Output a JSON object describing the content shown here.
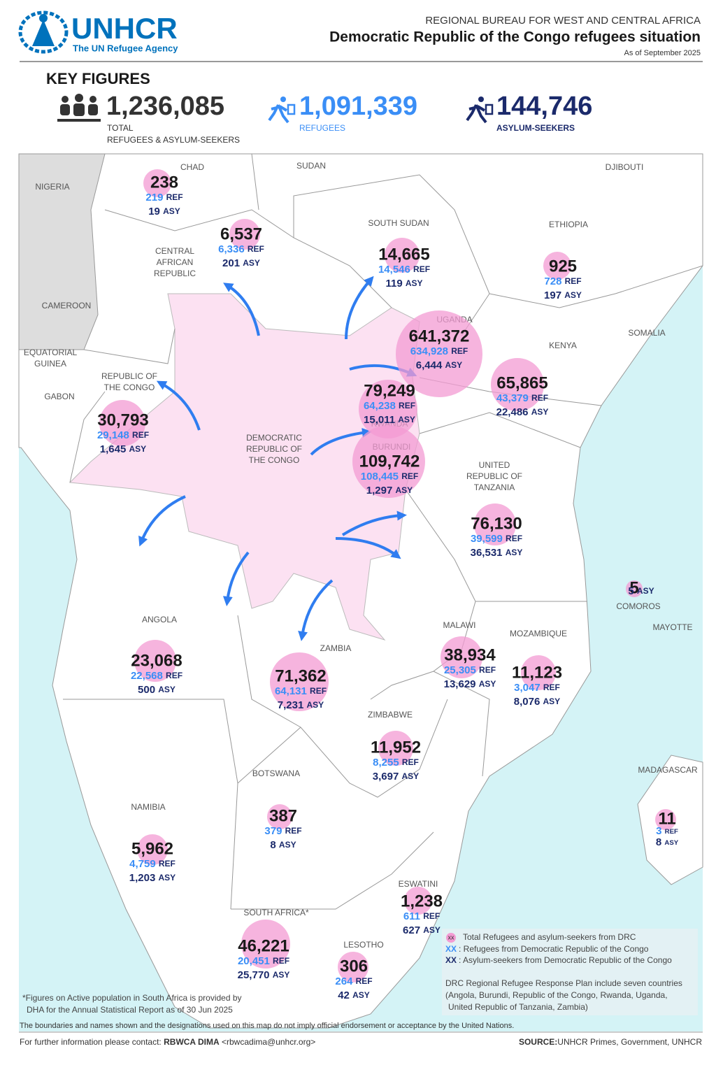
{
  "header": {
    "org": "UNHCR",
    "org_sub": "The UN Refugee Agency",
    "bureau": "REGIONAL BUREAU FOR WEST AND CENTRAL AFRICA",
    "title": "Democratic Republic of the Congo refugees situation",
    "date": "As of September 2025"
  },
  "key_figures": {
    "heading": "KEY FIGURES",
    "items": [
      {
        "value": "1,236,085",
        "label": [
          "TOTAL",
          "REFUGEES & ASYLUM-SEEKERS"
        ]
      },
      {
        "value": "1,091,339",
        "label": [
          "REFUGEES"
        ]
      },
      {
        "value": "144,746",
        "label": [
          "ASYLUM-SEEKERS"
        ]
      }
    ]
  },
  "units": {
    "ref": "REF",
    "asy": "ASY"
  },
  "countries": [
    [
      "NIGERIA"
    ],
    [
      "CHAD"
    ],
    [
      "SUDAN"
    ],
    [
      "DJIBOUTI"
    ],
    [
      "SOUTH SUDAN"
    ],
    [
      "ETHIOPIA"
    ],
    [
      "CENTRAL",
      "AFRICAN",
      "REPUBLIC"
    ],
    [
      "CAMEROON"
    ],
    [
      "SOMALIA"
    ],
    [
      "KENYA"
    ],
    [
      "UGANDA"
    ],
    [
      "EQUATORIAL",
      "GUINEA"
    ],
    [
      "REPUBLIC OF",
      "THE CONGO"
    ],
    [
      "GABON"
    ],
    [
      "RWANDA"
    ],
    [
      "BURUNDI"
    ],
    [
      "DEMOCRATIC",
      "REPUBLIC OF",
      "THE CONGO"
    ],
    [
      "UNITED",
      "REPUBLIC OF",
      "TANZANIA"
    ],
    [
      "COMOROS"
    ],
    [
      "MAYOTTE"
    ],
    [
      "ANGOLA"
    ],
    [
      "MALAWI"
    ],
    [
      "MOZAMBIQUE"
    ],
    [
      "ZAMBIA"
    ],
    [
      "ZIMBABWE"
    ],
    [
      "MADAGASCAR"
    ],
    [
      "BOTSWANA"
    ],
    [
      "NAMIBIA"
    ],
    [
      "ESWATINI"
    ],
    [
      "SOUTH AFRICA*"
    ],
    [
      "LESOTHO"
    ]
  ],
  "figures": [
    {
      "total": "238",
      "ref": "219",
      "asy": "19"
    },
    {
      "total": "6,537",
      "ref": "6,336",
      "asy": "201"
    },
    {
      "total": "14,665",
      "ref": "14,546",
      "asy": "119"
    },
    {
      "total": "925",
      "ref": "728",
      "asy": "197"
    },
    {
      "total": "641,372",
      "ref": "634,928",
      "asy": "6,444"
    },
    {
      "total": "65,865",
      "ref": "43,379",
      "asy": "22,486"
    },
    {
      "total": "79,249",
      "ref": "64,238",
      "asy": "15,011"
    },
    {
      "total": "109,742",
      "ref": "108,445",
      "asy": "1,297"
    },
    {
      "total": "30,793",
      "ref": "29,148",
      "asy": "1,645"
    },
    {
      "total": "76,130",
      "ref": "39,599",
      "asy": "36,531"
    },
    {
      "total": "5",
      "asy": "5"
    },
    {
      "total": "23,068",
      "ref": "22,568",
      "asy": "500"
    },
    {
      "total": "71,362",
      "ref": "64,131",
      "asy": "7,231"
    },
    {
      "total": "38,934",
      "ref": "25,305",
      "asy": "13,629"
    },
    {
      "total": "11,123",
      "ref": "3,047",
      "asy": "8,076"
    },
    {
      "total": "11,952",
      "ref": "8,255",
      "asy": "3,697"
    },
    {
      "total": "387",
      "ref": "379",
      "asy": "8"
    },
    {
      "total": "5,962",
      "ref": "4,759",
      "asy": "1,203"
    },
    {
      "total": "11",
      "ref": "3",
      "asy": "8"
    },
    {
      "total": "1,238",
      "ref": "611",
      "asy": "627"
    },
    {
      "total": "46,221",
      "ref": "20,451",
      "asy": "25,770"
    },
    {
      "total": "306",
      "ref": "264",
      "asy": "42"
    }
  ],
  "legend": {
    "items": [
      {
        "sample": "xx",
        "text": "Total Refugees and asylum-seekers from DRC"
      },
      {
        "sample": "XX",
        "text": ": Refugees from Democratic Republic of the Congo"
      },
      {
        "sample": "XX",
        "text": ": Asylum-seekers from Democratic Republic of the Congo"
      }
    ],
    "note": [
      "DRC Regional Refugee Response Plan include seven countries",
      "(Angola, Burundi, Republic of the Congo, Rwanda, Uganda,",
      "United Republic of Tanzania, Zambia)"
    ]
  },
  "footnote": [
    "*Figures on Active population in South Africa is provided by",
    "DHA for the Annual Statistical Report as of 30 Jun 2025"
  ],
  "disclaimer": "The boundaries and names shown and the designations used on this map do not imply official endorsement or acceptance by the United Nations.",
  "footer": {
    "contact_prefix": "For further information please contact:",
    "contact_name": "RBWCA DIMA",
    "contact_email": "<rbwcadima@unhcr.org>",
    "source_label": "SOURCE:",
    "source": "UNHCR Primes, Government, UNHCR"
  }
}
